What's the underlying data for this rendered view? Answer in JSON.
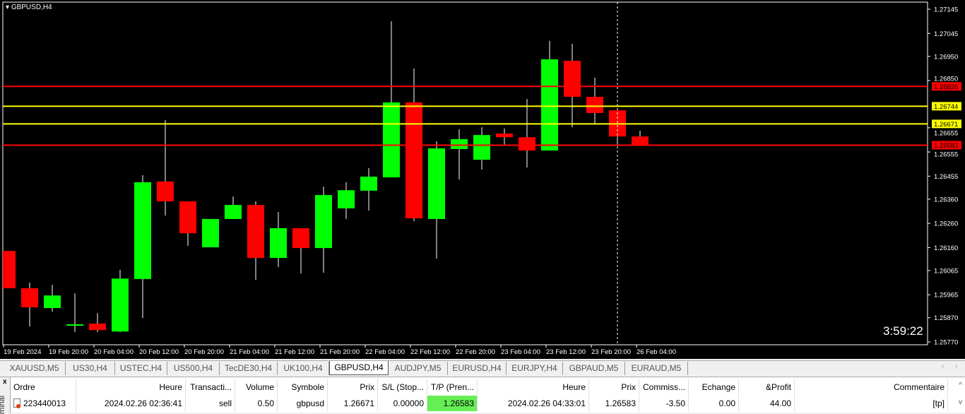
{
  "chart": {
    "title": "GBPUSD,H4",
    "countdown": "3:59:22",
    "colors": {
      "bull": "#00ff00",
      "bear": "#ff0000",
      "background": "#000000",
      "support": "#ff0000",
      "level": "#ffff00"
    },
    "price_axis": {
      "max": 1.27145,
      "min": 1.2577,
      "ticks": [
        "1.27145",
        "1.27045",
        "1.26950",
        "1.26850",
        "1.26655",
        "1.26555",
        "1.26455",
        "1.26360",
        "1.26260",
        "1.26160",
        "1.26065",
        "1.25965",
        "1.25870",
        "1.25770"
      ]
    },
    "time_axis": [
      "19 Feb 2024",
      "19 Feb 20:00",
      "20 Feb 04:00",
      "20 Feb 12:00",
      "20 Feb 20:00",
      "21 Feb 04:00",
      "21 Feb 12:00",
      "21 Feb 20:00",
      "22 Feb 04:00",
      "22 Feb 12:00",
      "22 Feb 20:00",
      "23 Feb 04:00",
      "23 Feb 12:00",
      "23 Feb 20:00",
      "26 Feb 04:00"
    ],
    "levels": [
      {
        "price": "1.26826",
        "color": "#ff0000"
      },
      {
        "price": "1.26744",
        "color": "#ffff00"
      },
      {
        "price": "1.26671",
        "color": "#ffff00"
      },
      {
        "price": "1.26583",
        "color": "#ff0000"
      }
    ],
    "crosshair_candle": 27,
    "candles": [
      [
        1.26146,
        1.26146,
        1.25992,
        1.25992
      ],
      [
        1.25992,
        1.26015,
        1.25834,
        1.25913
      ],
      [
        1.2591,
        1.26006,
        1.25895,
        1.25962
      ],
      [
        1.25837,
        1.25971,
        1.25811,
        1.25843
      ],
      [
        1.25846,
        1.25889,
        1.25811,
        1.25819
      ],
      [
        1.25813,
        1.26068,
        1.25811,
        1.26032
      ],
      [
        1.2603,
        1.26459,
        1.25869,
        1.2643
      ],
      [
        1.26433,
        1.26687,
        1.26292,
        1.26351
      ],
      [
        1.26351,
        1.26351,
        1.26167,
        1.26219
      ],
      [
        1.26161,
        1.26278,
        1.26161,
        1.26278
      ],
      [
        1.26278,
        1.26371,
        1.26278,
        1.26336
      ],
      [
        1.26336,
        1.26351,
        1.26027,
        1.26117
      ],
      [
        1.26117,
        1.26307,
        1.26079,
        1.2624
      ],
      [
        1.2624,
        1.2624,
        1.26053,
        1.26158
      ],
      [
        1.26158,
        1.26412,
        1.26056,
        1.26377
      ],
      [
        1.26322,
        1.2643,
        1.26278,
        1.26397
      ],
      [
        1.26395,
        1.26488,
        1.26313,
        1.26453
      ],
      [
        1.2645,
        1.27095,
        1.2645,
        1.2676
      ],
      [
        1.2676,
        1.269,
        1.26269,
        1.26281
      ],
      [
        1.26278,
        1.26599,
        1.26114,
        1.2657
      ],
      [
        1.26567,
        1.26649,
        1.26441,
        1.26608
      ],
      [
        1.26523,
        1.26657,
        1.26482,
        1.26625
      ],
      [
        1.26631,
        1.26652,
        1.26584,
        1.26616
      ],
      [
        1.26616,
        1.26774,
        1.26491,
        1.26561
      ],
      [
        1.26561,
        1.27014,
        1.26561,
        1.26938
      ],
      [
        1.26932,
        1.27002,
        1.26657,
        1.26783
      ],
      [
        1.26783,
        1.26862,
        1.26669,
        1.26716
      ],
      [
        1.26727,
        1.26727,
        1.26584,
        1.26619
      ],
      [
        1.26619,
        1.26643,
        1.26581,
        1.26581
      ]
    ]
  },
  "tabs": [
    "XAUUSD,M5",
    "US30,H4",
    "USTEC,H4",
    "US500,H4",
    "TecDE30,H4",
    "UK100,H4",
    "GBPUSD,H4",
    "AUDJPY,M5",
    "EURUSD,H4",
    "EURJPY,H4",
    "GBPAUD,M5",
    "EURAUD,M5"
  ],
  "active_tab": 6,
  "terminal": {
    "close": "x",
    "label": "minal",
    "headers": [
      "Ordre",
      "Heure",
      "Transacti...",
      "Volume",
      "Symbole",
      "Prix",
      "S/L (Stop...",
      "T/P (Pren...",
      "Heure",
      "Prix",
      "Commiss...",
      "Echange",
      "&Profit",
      "Commentaire"
    ],
    "row": [
      "223440013",
      "2024.02.26 02:36:41",
      "sell",
      "0.50",
      "gbpusd",
      "1.26671",
      "0.00000",
      "1.26583",
      "2024.02.26 04:33:01",
      "1.26583",
      "-3.50",
      "0.00",
      "44.00",
      "[tp]"
    ],
    "tp_highlight": "#66ee55"
  }
}
